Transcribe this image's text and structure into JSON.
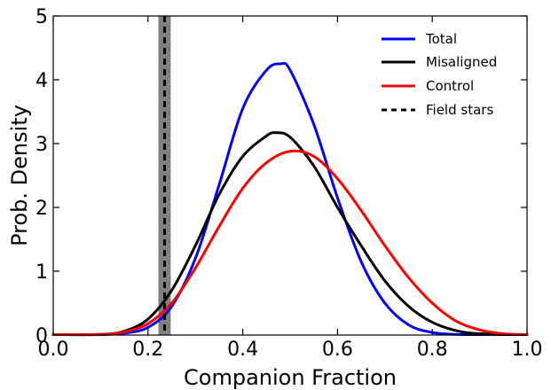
{
  "chart_data": {
    "type": "line",
    "xlabel": "Companion Fraction",
    "ylabel": "Prob. Density",
    "xlim": [
      0.0,
      1.0
    ],
    "ylim": [
      0,
      5
    ],
    "xticks": [
      0.0,
      0.2,
      0.4,
      0.6,
      0.8,
      1.0
    ],
    "xtick_labels": [
      "0.0",
      "0.2",
      "0.4",
      "0.6",
      "0.8",
      "1.0"
    ],
    "yticks": [
      0,
      1,
      2,
      3,
      4,
      5
    ],
    "ytick_labels": [
      "0",
      "1",
      "2",
      "3",
      "4",
      "5"
    ],
    "grid": false,
    "legend_position": "top-right",
    "series": [
      {
        "name": "Total",
        "color": "#0000ff",
        "style": "solid",
        "x": [
          0.0,
          0.1,
          0.15,
          0.2,
          0.25,
          0.3,
          0.35,
          0.4,
          0.45,
          0.48,
          0.5,
          0.55,
          0.6,
          0.65,
          0.7,
          0.75,
          0.8,
          0.85,
          0.9,
          1.0
        ],
        "y": [
          0.0,
          0.005,
          0.03,
          0.12,
          0.45,
          1.2,
          2.35,
          3.55,
          4.15,
          4.25,
          4.15,
          3.3,
          2.15,
          1.15,
          0.5,
          0.16,
          0.04,
          0.01,
          0.0,
          0.0
        ]
      },
      {
        "name": "Misaligned",
        "color": "#000000",
        "style": "solid",
        "x": [
          0.0,
          0.1,
          0.15,
          0.2,
          0.25,
          0.3,
          0.35,
          0.4,
          0.45,
          0.47,
          0.5,
          0.55,
          0.6,
          0.65,
          0.7,
          0.75,
          0.8,
          0.85,
          0.9,
          1.0
        ],
        "y": [
          0.0,
          0.01,
          0.06,
          0.25,
          0.7,
          1.4,
          2.2,
          2.8,
          3.12,
          3.17,
          3.1,
          2.65,
          2.0,
          1.4,
          0.85,
          0.45,
          0.2,
          0.07,
          0.02,
          0.0
        ]
      },
      {
        "name": "Control",
        "color": "#ff0000",
        "style": "solid",
        "x": [
          0.0,
          0.1,
          0.15,
          0.2,
          0.25,
          0.3,
          0.35,
          0.4,
          0.45,
          0.5,
          0.55,
          0.6,
          0.65,
          0.7,
          0.75,
          0.8,
          0.85,
          0.9,
          0.95,
          1.0
        ],
        "y": [
          0.0,
          0.01,
          0.05,
          0.18,
          0.5,
          1.05,
          1.7,
          2.3,
          2.7,
          2.88,
          2.8,
          2.45,
          1.95,
          1.4,
          0.9,
          0.5,
          0.22,
          0.08,
          0.02,
          0.0
        ]
      }
    ],
    "reference_line": {
      "name": "Field stars",
      "color": "#000000",
      "style": "dashed",
      "x": 0.235,
      "band": [
        0.222,
        0.248
      ],
      "band_color": "#808080"
    }
  }
}
